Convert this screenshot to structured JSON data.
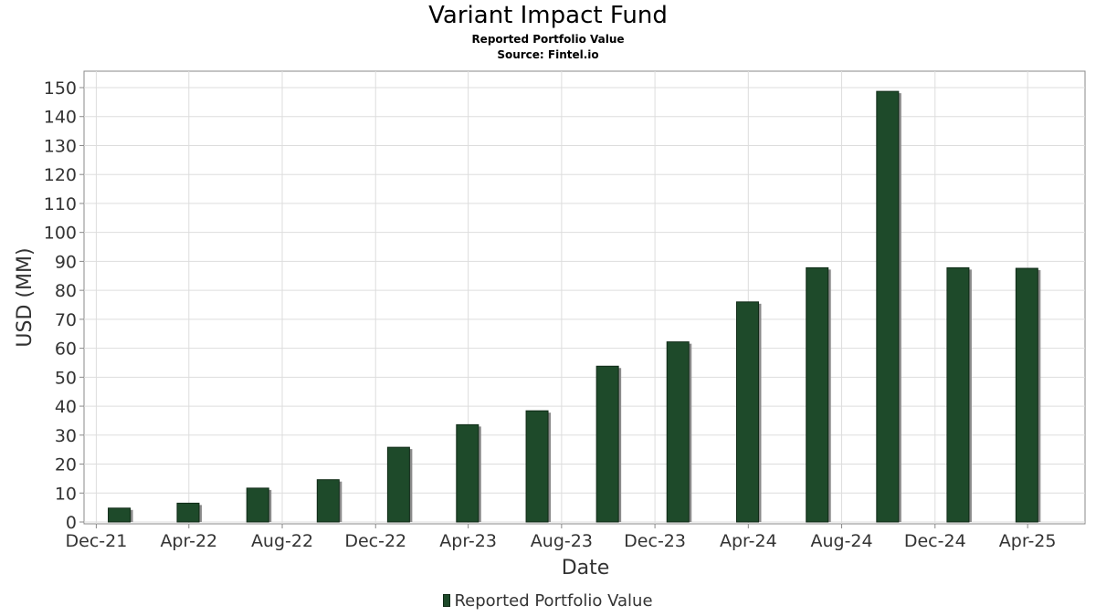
{
  "header": {
    "title": "Variant Impact Fund",
    "subtitle": "Reported Portfolio Value",
    "source": "Source: Fintel.io"
  },
  "legend": {
    "label": "Reported Portfolio Value"
  },
  "colors": {
    "bar": "#1e4a2a",
    "bar_shadow": "#8a8a8a",
    "grid": "#dddddd",
    "frame": "#888888"
  },
  "chart_data": {
    "type": "bar",
    "title": "Variant Impact Fund",
    "subtitle": "Reported Portfolio Value",
    "xlabel": "Date",
    "ylabel": "USD (MM)",
    "ylim": [
      0,
      155
    ],
    "yticks": [
      0,
      10,
      20,
      30,
      40,
      50,
      60,
      70,
      80,
      90,
      100,
      110,
      120,
      130,
      140,
      150
    ],
    "xlim": [
      "2021-11-15",
      "2025-06-15"
    ],
    "xticks": [
      {
        "date": "2021-12-01",
        "label": "Dec-21"
      },
      {
        "date": "2022-04-01",
        "label": "Apr-22"
      },
      {
        "date": "2022-08-01",
        "label": "Aug-22"
      },
      {
        "date": "2022-12-01",
        "label": "Dec-22"
      },
      {
        "date": "2023-04-01",
        "label": "Apr-23"
      },
      {
        "date": "2023-08-01",
        "label": "Aug-23"
      },
      {
        "date": "2023-12-01",
        "label": "Dec-23"
      },
      {
        "date": "2024-04-01",
        "label": "Apr-24"
      },
      {
        "date": "2024-08-01",
        "label": "Aug-24"
      },
      {
        "date": "2024-12-01",
        "label": "Dec-24"
      },
      {
        "date": "2025-04-01",
        "label": "Apr-25"
      }
    ],
    "grid": true,
    "legend_position": "bottom",
    "series": [
      {
        "name": "Reported Portfolio Value",
        "x": [
          "2021-12-31",
          "2022-03-31",
          "2022-06-30",
          "2022-09-30",
          "2022-12-31",
          "2023-03-31",
          "2023-06-30",
          "2023-09-30",
          "2023-12-31",
          "2024-03-31",
          "2024-06-30",
          "2024-09-30",
          "2024-12-31",
          "2025-03-31"
        ],
        "values": [
          4.8,
          6.5,
          11.7,
          14.6,
          25.8,
          33.6,
          38.4,
          53.8,
          62.2,
          76.0,
          87.8,
          148.7,
          87.8,
          87.6
        ]
      }
    ]
  }
}
